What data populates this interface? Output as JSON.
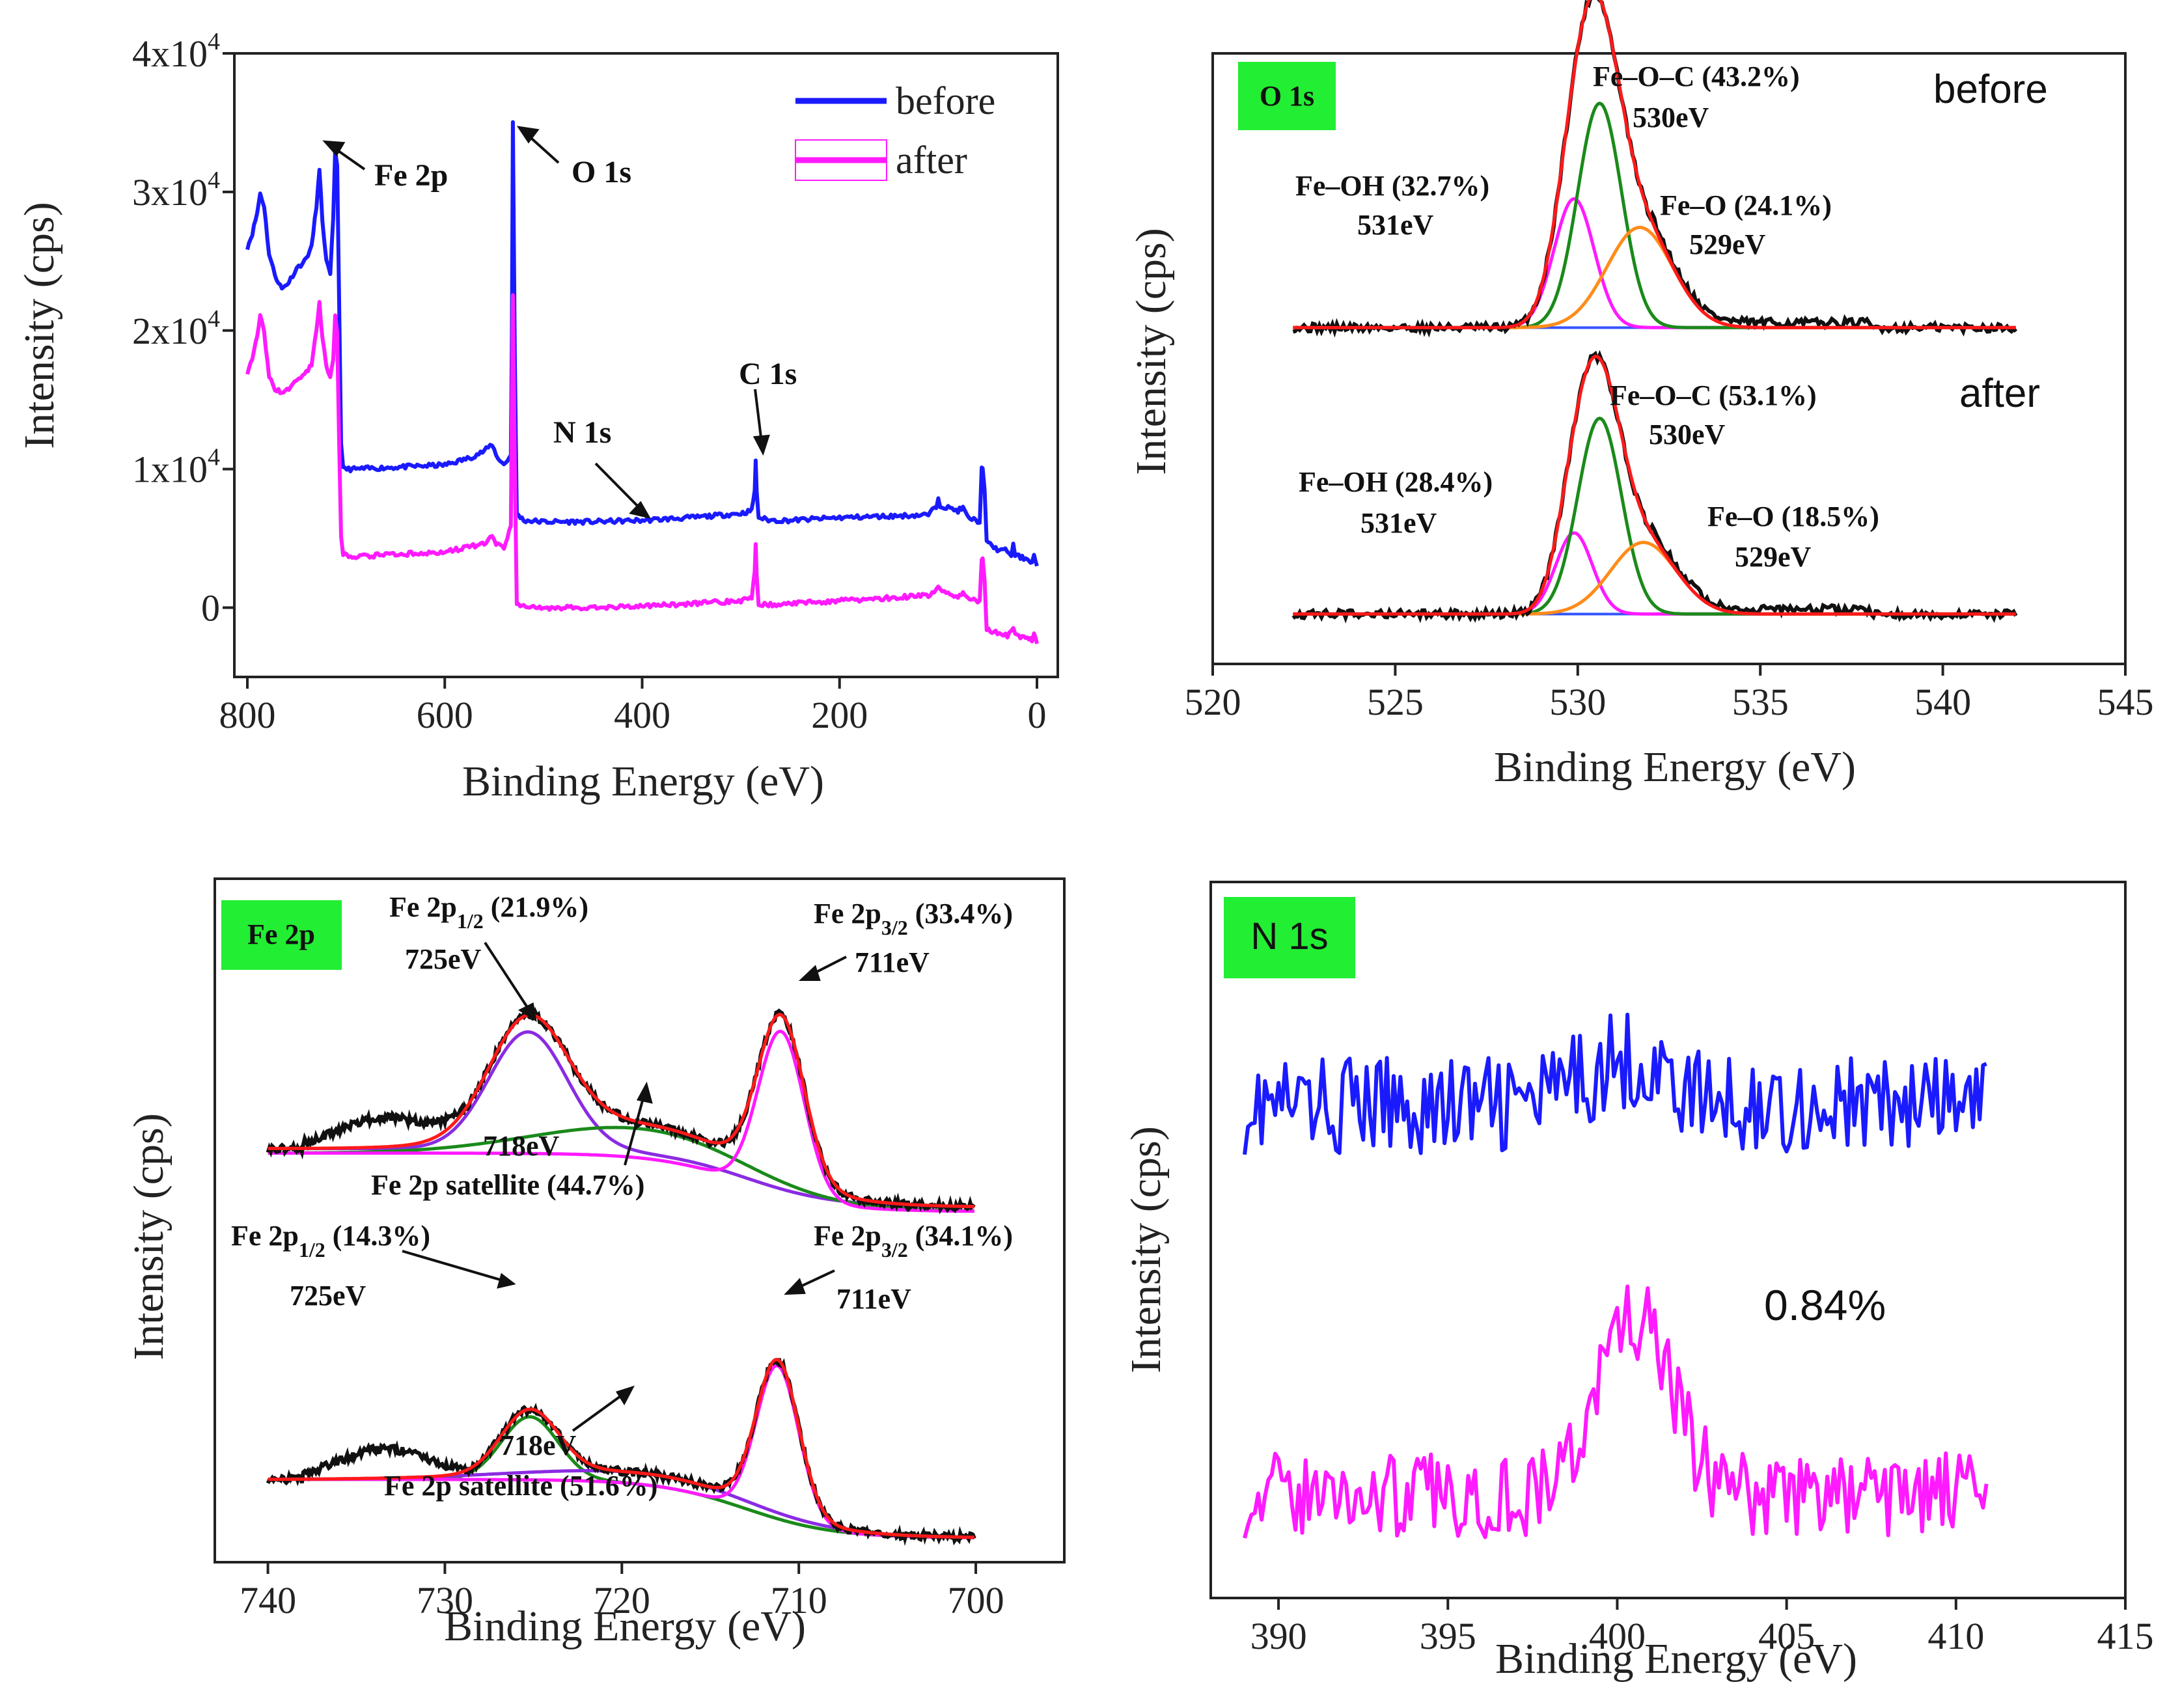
{
  "figure": {
    "panels": [
      {
        "id": "survey"
      },
      {
        "id": "o1s"
      },
      {
        "id": "fe2p"
      },
      {
        "id": "n1s"
      }
    ]
  },
  "colors": {
    "before": "#1a1aff",
    "after": "#ff1aff",
    "fit_envelope": "#ff1a1a",
    "raw": "#111111",
    "green": "#1a8a1a",
    "orange": "#ff8c1a",
    "purple": "#8a2be2",
    "magenta": "#ff1aff",
    "baseline": "#3355ff",
    "tag_bg": "#22ee33"
  },
  "chart_data": [
    {
      "type": "line",
      "panel": "survey",
      "title": "",
      "xlabel": "Binding Energy (eV)",
      "ylabel": "Intensity (cps)",
      "xlim": [
        800,
        0
      ],
      "ylim": [
        -5000,
        40000
      ],
      "x_ticks": [
        "800",
        "600",
        "400",
        "200",
        "0"
      ],
      "y_ticks": [
        {
          "base": "0",
          "exp": ""
        },
        {
          "base": "1x10",
          "exp": "4"
        },
        {
          "base": "2x10",
          "exp": "4"
        },
        {
          "base": "3x10",
          "exp": "4"
        },
        {
          "base": "4x10",
          "exp": "4"
        }
      ],
      "legend": [
        {
          "label": "before"
        },
        {
          "label": "after"
        }
      ],
      "annotations": [
        "Fe 2p",
        "O 1s",
        "N 1s",
        "C 1s"
      ],
      "series": [
        {
          "name": "before",
          "points": [
            [
              800,
              26000
            ],
            [
              795,
              27000
            ],
            [
              790,
              28500
            ],
            [
              787,
              29900
            ],
            [
              783,
              29000
            ],
            [
              778,
              25500
            ],
            [
              772,
              24000
            ],
            [
              765,
              23000
            ],
            [
              758,
              23500
            ],
            [
              750,
              24500
            ],
            [
              742,
              25000
            ],
            [
              735,
              26000
            ],
            [
              730,
              29000
            ],
            [
              727,
              31500
            ],
            [
              724,
              28000
            ],
            [
              720,
              25000
            ],
            [
              716,
              24000
            ],
            [
              713,
              28000
            ],
            [
              711,
              33000
            ],
            [
              709,
              32000
            ],
            [
              707,
              22000
            ],
            [
              705,
              12000
            ],
            [
              703,
              10000
            ],
            [
              690,
              10000
            ],
            [
              660,
              10100
            ],
            [
              630,
              10200
            ],
            [
              600,
              10300
            ],
            [
              575,
              10800
            ],
            [
              560,
              11300
            ],
            [
              552,
              11800
            ],
            [
              548,
              11000
            ],
            [
              540,
              10300
            ],
            [
              533,
              11000
            ],
            [
              532,
              20000
            ],
            [
              531,
              35000
            ],
            [
              529,
              18000
            ],
            [
              527,
              6800
            ],
            [
              520,
              6300
            ],
            [
              500,
              6200
            ],
            [
              450,
              6200
            ],
            [
              400,
              6300
            ],
            [
              350,
              6500
            ],
            [
              300,
              6800
            ],
            [
              289,
              7000
            ],
            [
              286,
              8500
            ],
            [
              285,
              10500
            ],
            [
              284,
              8500
            ],
            [
              282,
              6500
            ],
            [
              270,
              6300
            ],
            [
              250,
              6300
            ],
            [
              200,
              6500
            ],
            [
              150,
              6600
            ],
            [
              110,
              6700
            ],
            [
              102,
              7300
            ],
            [
              100,
              8000
            ],
            [
              98,
              7400
            ],
            [
              90,
              7200
            ],
            [
              80,
              7000
            ],
            [
              75,
              7200
            ],
            [
              70,
              6500
            ],
            [
              58,
              6200
            ],
            [
              56,
              10000
            ],
            [
              55,
              10200
            ],
            [
              53,
              8500
            ],
            [
              51,
              4700
            ],
            [
              40,
              4200
            ],
            [
              30,
              4100
            ],
            [
              26,
              3800
            ],
            [
              24,
              4500
            ],
            [
              22,
              3800
            ],
            [
              15,
              3600
            ],
            [
              8,
              3500
            ],
            [
              5,
              3200
            ],
            [
              3,
              3800
            ],
            [
              0,
              3000
            ]
          ]
        },
        {
          "name": "after",
          "points": [
            [
              800,
              17000
            ],
            [
              795,
              18000
            ],
            [
              790,
              19500
            ],
            [
              787,
              21200
            ],
            [
              783,
              19800
            ],
            [
              778,
              16600
            ],
            [
              772,
              15800
            ],
            [
              765,
              15500
            ],
            [
              758,
              15800
            ],
            [
              750,
              16400
            ],
            [
              742,
              16800
            ],
            [
              735,
              17500
            ],
            [
              730,
              20000
            ],
            [
              727,
              22000
            ],
            [
              724,
              19500
            ],
            [
              720,
              17500
            ],
            [
              716,
              16500
            ],
            [
              713,
              17800
            ],
            [
              711,
              21000
            ],
            [
              709,
              19800
            ],
            [
              707,
              12000
            ],
            [
              705,
              5000
            ],
            [
              703,
              3800
            ],
            [
              690,
              3700
            ],
            [
              660,
              3800
            ],
            [
              630,
              3900
            ],
            [
              600,
              4000
            ],
            [
              575,
              4400
            ],
            [
              560,
              4600
            ],
            [
              552,
              5100
            ],
            [
              548,
              4600
            ],
            [
              540,
              4200
            ],
            [
              533,
              6000
            ],
            [
              532,
              15000
            ],
            [
              531,
              22500
            ],
            [
              529,
              10000
            ],
            [
              527,
              300
            ],
            [
              520,
              100
            ],
            [
              500,
              0
            ],
            [
              450,
              0
            ],
            [
              400,
              100
            ],
            [
              350,
              300
            ],
            [
              300,
              500
            ],
            [
              289,
              700
            ],
            [
              286,
              2500
            ],
            [
              285,
              4600
            ],
            [
              284,
              2200
            ],
            [
              282,
              300
            ],
            [
              270,
              200
            ],
            [
              250,
              300
            ],
            [
              200,
              500
            ],
            [
              150,
              700
            ],
            [
              110,
              900
            ],
            [
              102,
              1200
            ],
            [
              100,
              1600
            ],
            [
              98,
              1200
            ],
            [
              90,
              1000
            ],
            [
              80,
              800
            ],
            [
              75,
              1000
            ],
            [
              70,
              600
            ],
            [
              58,
              500
            ],
            [
              56,
              3600
            ],
            [
              55,
              3700
            ],
            [
              53,
              1800
            ],
            [
              51,
              -1600
            ],
            [
              40,
              -1800
            ],
            [
              30,
              -2000
            ],
            [
              26,
              -1800
            ],
            [
              24,
              -1400
            ],
            [
              22,
              -2000
            ],
            [
              15,
              -2100
            ],
            [
              8,
              -2200
            ],
            [
              5,
              -2400
            ],
            [
              3,
              -2000
            ],
            [
              0,
              -2600
            ]
          ]
        }
      ]
    },
    {
      "type": "line",
      "panel": "o1s",
      "title": "O 1s",
      "xlabel": "Binding Energy (eV)",
      "ylabel": "Intensity (cps)",
      "xlim": [
        520,
        545
      ],
      "ylim": [
        -0.1,
        2.3
      ],
      "x_ticks": [
        "520",
        "525",
        "530",
        "535",
        "540",
        "545"
      ],
      "state_labels": [
        "before",
        "after"
      ],
      "annotations": [
        {
          "label": "Fe–O–C (43.2%)",
          "energy": "530eV"
        },
        {
          "label": "Fe–OH (32.7%)",
          "energy": "531eV"
        },
        {
          "label": "Fe–O (24.1%)",
          "energy": "529eV"
        },
        {
          "label": "Fe–O–C (53.1%)",
          "energy": "530eV"
        },
        {
          "label": "Fe–OH (28.4%)",
          "energy": "531eV"
        },
        {
          "label": "Fe–O (18.5%)",
          "energy": "529eV"
        }
      ],
      "series": [
        {
          "name": "before Fe–OH component",
          "color": "magenta",
          "peak": {
            "center": 529.9,
            "height": 0.54,
            "sigma": 0.55
          },
          "offset": 1.2
        },
        {
          "name": "before Fe–O–C component",
          "color": "green",
          "peak": {
            "center": 530.6,
            "height": 0.94,
            "sigma": 0.6
          },
          "offset": 1.2
        },
        {
          "name": "before Fe–O component",
          "color": "orange",
          "peak": {
            "center": 531.7,
            "height": 0.42,
            "sigma": 0.9
          },
          "offset": 1.2
        },
        {
          "name": "after Fe–OH component",
          "color": "magenta",
          "peak": {
            "center": 529.9,
            "height": 0.34,
            "sigma": 0.5
          },
          "offset": 0.0
        },
        {
          "name": "after Fe–O–C component",
          "color": "green",
          "peak": {
            "center": 530.6,
            "height": 0.82,
            "sigma": 0.6
          },
          "offset": 0.0
        },
        {
          "name": "after Fe–O component",
          "color": "orange",
          "peak": {
            "center": 531.8,
            "height": 0.3,
            "sigma": 0.9
          },
          "offset": 0.0
        }
      ]
    },
    {
      "type": "line",
      "panel": "fe2p",
      "title": "Fe 2p",
      "xlabel": "Binding Energy (eV)",
      "ylabel": "Intensity (cps)",
      "xlim": [
        743,
        695
      ],
      "ylim": [
        -0.05,
        2.9
      ],
      "x_ticks": [
        "740",
        "730",
        "720",
        "710",
        "700"
      ],
      "annotations": [
        {
          "label": "Fe 2p",
          "sub": "1/2",
          "pct": " (21.9%)",
          "energy": "725eV"
        },
        {
          "label": "Fe 2p",
          "sub": "3/2",
          "pct": " (33.4%)",
          "energy": "711eV"
        },
        {
          "label": "Fe 2p satellite (44.7%)",
          "energy": "718eV"
        },
        {
          "label": "Fe 2p",
          "sub": "1/2",
          "pct": " (14.3%)",
          "energy": "725eV"
        },
        {
          "label": "Fe 2p",
          "sub": "3/2",
          "pct": " (34.1%)",
          "energy": "711eV"
        },
        {
          "label": "Fe 2p satellite (51.6%)",
          "energy": "718eV"
        }
      ],
      "series": [
        {
          "name": "before 2p1/2 component",
          "color": "purple",
          "offset": 1.45
        },
        {
          "name": "before satellite component",
          "color": "green",
          "offset": 1.45
        },
        {
          "name": "before 2p3/2 component",
          "color": "magenta",
          "offset": 1.45
        },
        {
          "name": "after 2p1/2 component",
          "color": "green",
          "offset": 0.0
        },
        {
          "name": "after satellite component",
          "color": "purple",
          "offset": 0.0
        },
        {
          "name": "after 2p3/2 component",
          "color": "magenta",
          "offset": 0.0
        }
      ]
    },
    {
      "type": "line",
      "panel": "n1s",
      "title": "N 1s",
      "xlabel": "Binding Energy (eV)",
      "ylabel": "Intensity (cps)",
      "xlim": [
        388,
        415
      ],
      "ylim": [
        -0.2,
        4.4
      ],
      "x_ticks": [
        "390",
        "395",
        "400",
        "405",
        "410",
        "415"
      ],
      "annotations": [
        "0.84%"
      ],
      "series": [
        {
          "name": "before",
          "x_range": [
            389,
            411
          ],
          "level": 3.0,
          "peak": {
            "center": 400.2,
            "height": 0.3,
            "sigma": 1.2
          },
          "noise": 0.32
        },
        {
          "name": "after",
          "x_range": [
            389,
            411
          ],
          "level": 0.45,
          "peak": {
            "center": 400.5,
            "height": 1.15,
            "sigma": 1.1
          },
          "noise": 0.28
        }
      ]
    }
  ]
}
